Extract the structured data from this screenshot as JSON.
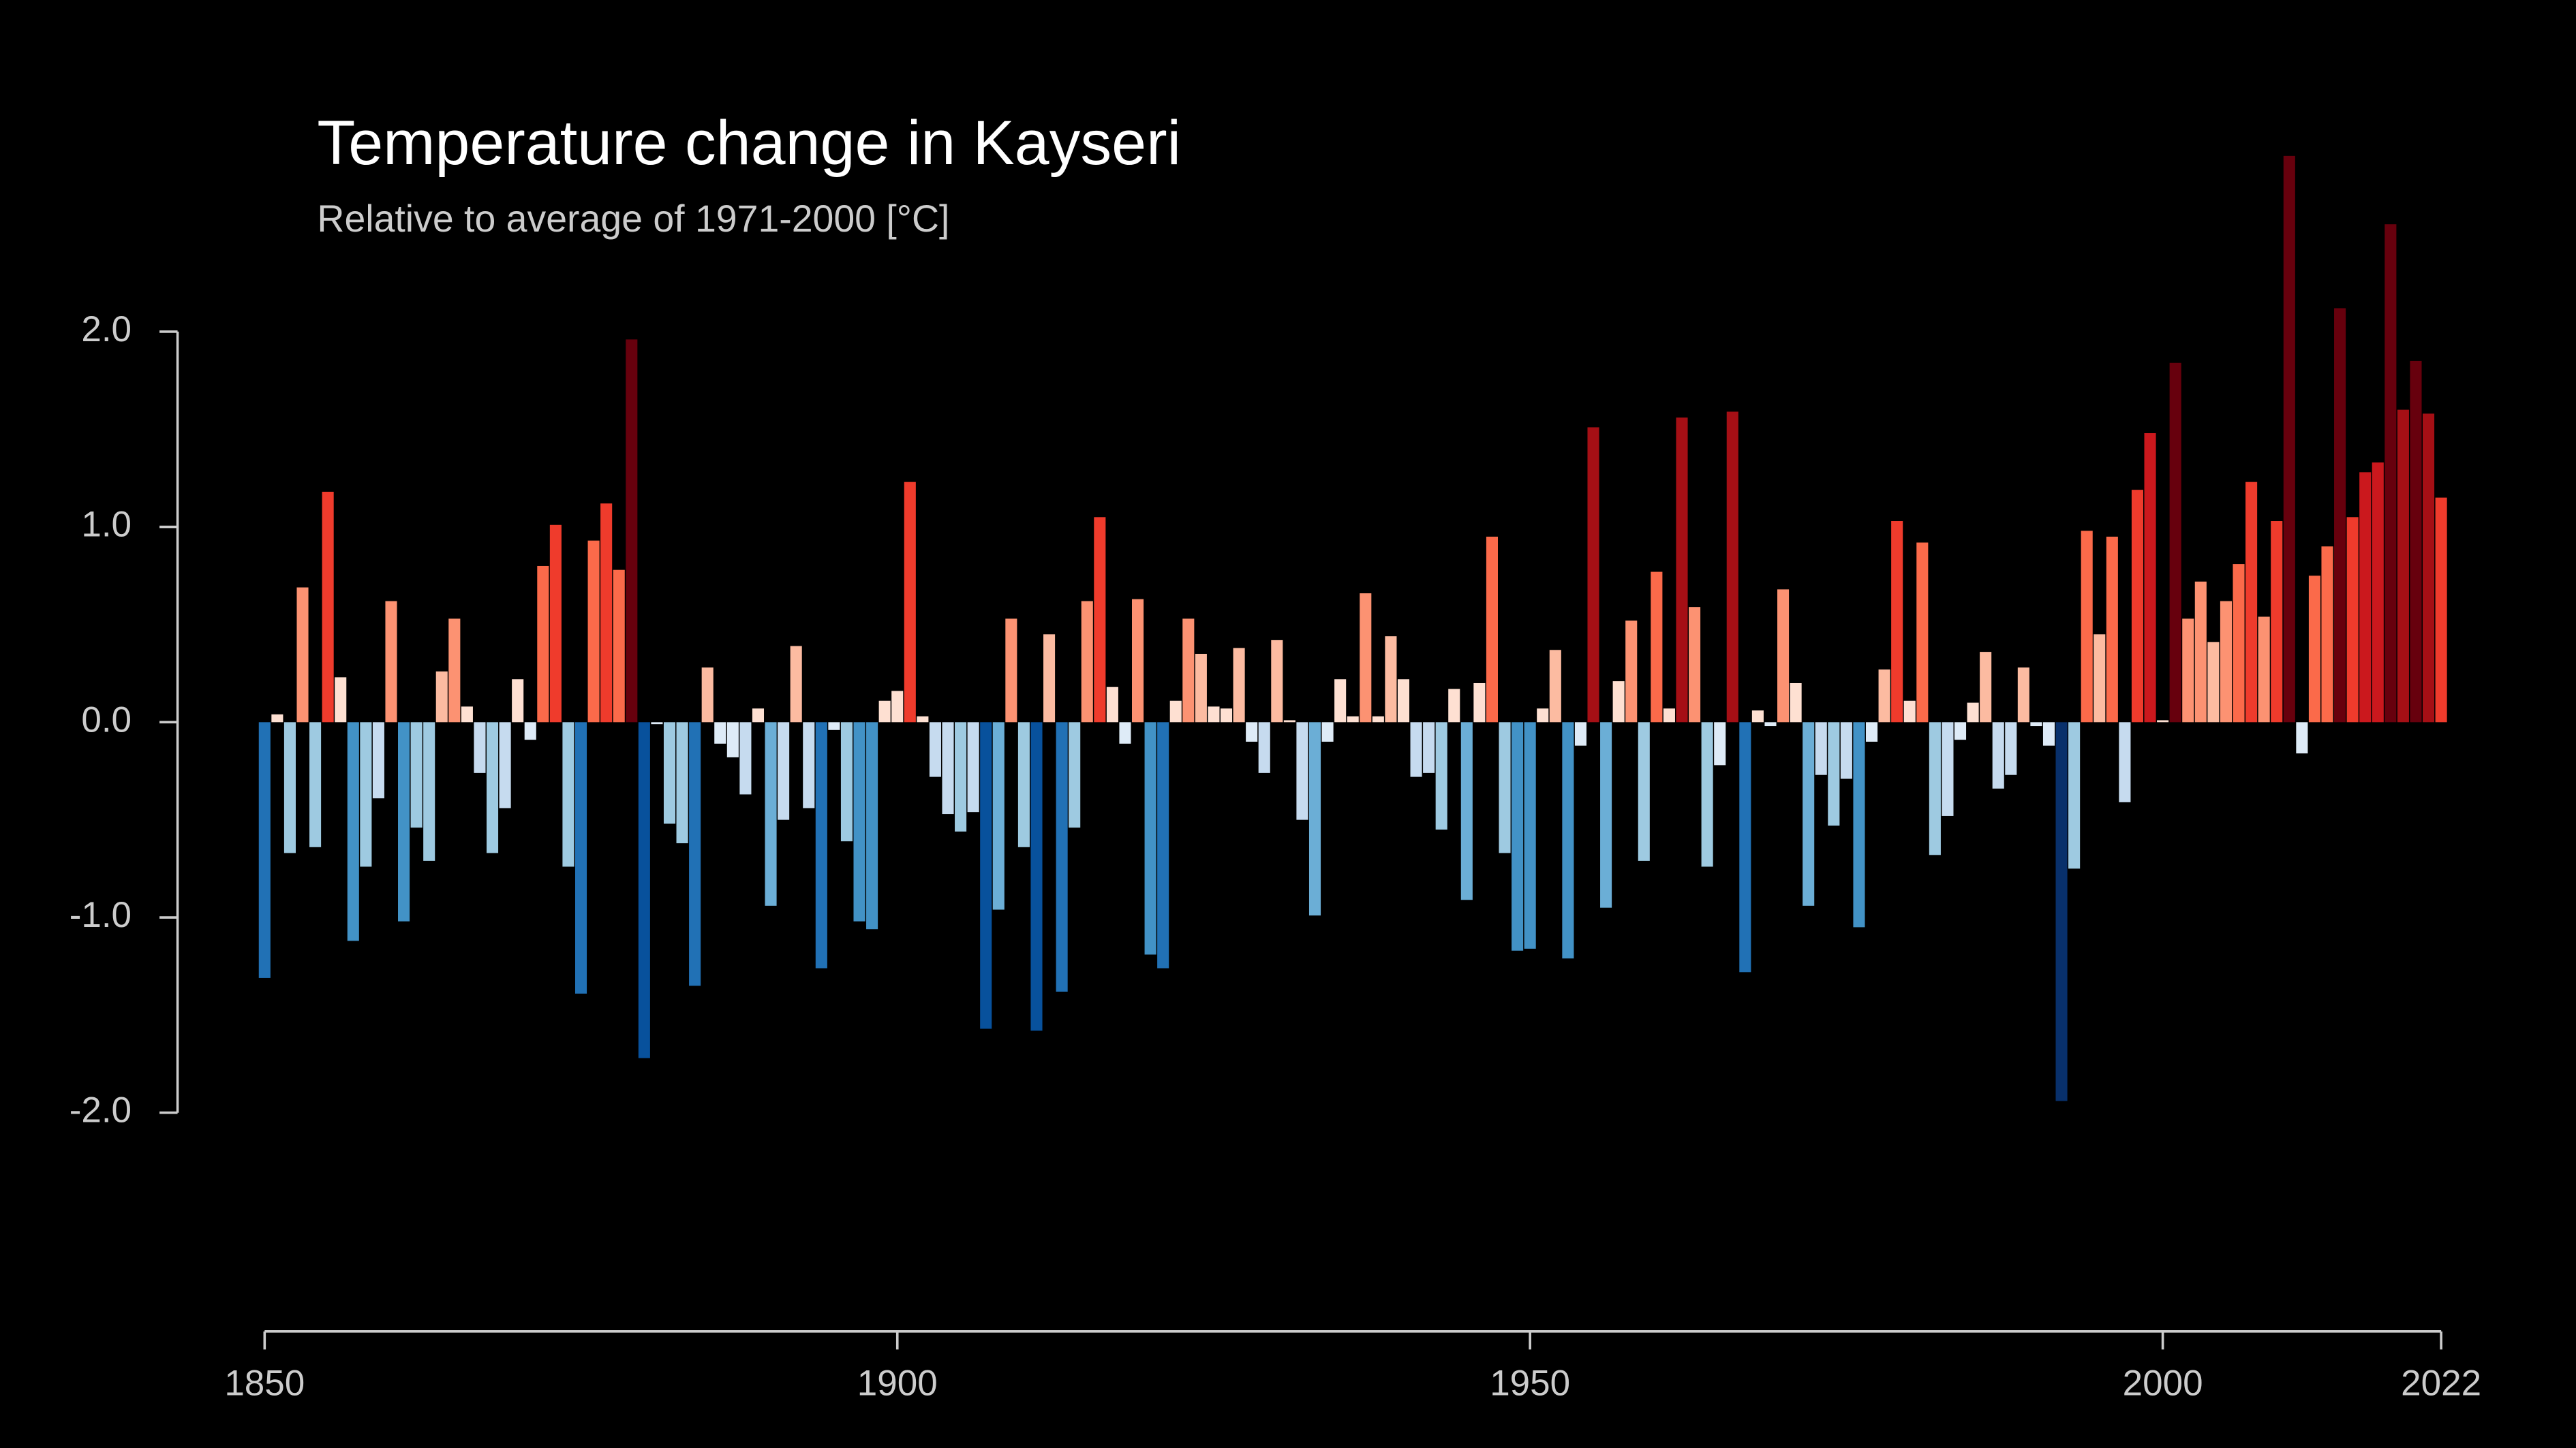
{
  "chart_data": {
    "type": "bar",
    "title": "Temperature change in Kayseri",
    "subtitle": "Relative to average of 1971-2000  [°C]",
    "x": [
      1850,
      1851,
      1852,
      1853,
      1854,
      1855,
      1856,
      1857,
      1858,
      1859,
      1860,
      1861,
      1862,
      1863,
      1864,
      1865,
      1866,
      1867,
      1868,
      1869,
      1870,
      1871,
      1872,
      1873,
      1874,
      1875,
      1876,
      1877,
      1878,
      1879,
      1880,
      1881,
      1882,
      1883,
      1884,
      1885,
      1886,
      1887,
      1888,
      1889,
      1890,
      1891,
      1892,
      1893,
      1894,
      1895,
      1896,
      1897,
      1898,
      1899,
      1900,
      1901,
      1902,
      1903,
      1904,
      1905,
      1906,
      1907,
      1908,
      1909,
      1910,
      1911,
      1912,
      1913,
      1914,
      1915,
      1916,
      1917,
      1918,
      1919,
      1920,
      1921,
      1922,
      1923,
      1924,
      1925,
      1926,
      1927,
      1928,
      1929,
      1930,
      1931,
      1932,
      1933,
      1934,
      1935,
      1936,
      1937,
      1938,
      1939,
      1940,
      1941,
      1942,
      1943,
      1944,
      1945,
      1946,
      1947,
      1948,
      1949,
      1950,
      1951,
      1952,
      1953,
      1954,
      1955,
      1956,
      1957,
      1958,
      1959,
      1960,
      1961,
      1962,
      1963,
      1964,
      1965,
      1966,
      1967,
      1968,
      1969,
      1970,
      1971,
      1972,
      1973,
      1974,
      1975,
      1976,
      1977,
      1978,
      1979,
      1980,
      1981,
      1982,
      1983,
      1984,
      1985,
      1986,
      1987,
      1988,
      1989,
      1990,
      1991,
      1992,
      1993,
      1994,
      1995,
      1996,
      1997,
      1998,
      1999,
      2000,
      2001,
      2002,
      2003,
      2004,
      2005,
      2006,
      2007,
      2008,
      2009,
      2010,
      2011,
      2012,
      2013,
      2014,
      2015,
      2016,
      2017,
      2018,
      2019,
      2020,
      2021,
      2022
    ],
    "values": [
      -1.31,
      0.04,
      -0.67,
      0.69,
      -0.64,
      1.18,
      0.23,
      -1.12,
      -0.74,
      -0.39,
      0.62,
      -1.02,
      -0.54,
      -0.71,
      0.26,
      0.53,
      0.08,
      -0.26,
      -0.67,
      -0.44,
      0.22,
      -0.09,
      0.8,
      1.01,
      -0.74,
      -1.39,
      0.93,
      1.12,
      0.78,
      1.96,
      -1.72,
      -0.01,
      -0.52,
      -0.62,
      -1.35,
      0.28,
      -0.11,
      -0.18,
      -0.37,
      0.07,
      -0.94,
      -0.5,
      0.39,
      -0.44,
      -1.26,
      -0.04,
      -0.61,
      -1.02,
      -1.06,
      0.11,
      0.16,
      1.23,
      0.03,
      -0.28,
      -0.47,
      -0.56,
      -0.46,
      -1.57,
      -0.96,
      0.53,
      -0.64,
      -1.58,
      0.45,
      -1.38,
      -0.54,
      0.62,
      1.05,
      0.18,
      -0.11,
      0.63,
      -1.19,
      -1.26,
      0.11,
      0.53,
      0.35,
      0.08,
      0.07,
      0.38,
      -0.1,
      -0.26,
      0.42,
      0.01,
      -0.5,
      -0.99,
      -0.1,
      0.22,
      0.03,
      0.66,
      0.03,
      0.44,
      0.22,
      -0.28,
      -0.26,
      -0.55,
      0.17,
      -0.91,
      0.2,
      0.95,
      -0.67,
      -1.17,
      -1.16,
      0.07,
      0.37,
      -1.21,
      -0.12,
      1.51,
      -0.95,
      0.21,
      0.52,
      -0.71,
      0.77,
      0.07,
      1.56,
      0.59,
      -0.74,
      -0.22,
      1.59,
      -1.28,
      0.06,
      -0.02,
      0.68,
      0.2,
      -0.94,
      -0.27,
      -0.53,
      -0.29,
      -1.05,
      -0.1,
      0.27,
      1.03,
      0.11,
      0.92,
      -0.68,
      -0.48,
      -0.09,
      0.1,
      0.36,
      -0.34,
      -0.27,
      0.28,
      -0.02,
      -0.12,
      -1.94,
      -0.75,
      0.98,
      0.45,
      0.95,
      -0.41,
      1.19,
      1.48,
      0.01,
      1.84,
      0.53,
      0.72,
      0.41,
      0.62,
      0.81,
      1.23,
      0.54,
      1.03,
      2.9,
      -0.16,
      0.75,
      0.9,
      2.12,
      1.05,
      1.28,
      1.33,
      2.55,
      1.6,
      1.85,
      1.58,
      1.15
    ],
    "colors": [
      "#08306b",
      "#08519c",
      "#2171b5",
      "#4292c6",
      "#6baed6",
      "#9ecae1",
      "#c6dbef",
      "#deebf7",
      "#fee0d2",
      "#fcbba1",
      "#fc9272",
      "#fb6a4a",
      "#ef3b2c",
      "#cb181d",
      "#a50f15",
      "#67000d"
    ],
    "xlim": [
      1850,
      2022
    ],
    "xticks": [
      1850,
      1900,
      1950,
      2000,
      2022
    ],
    "ylim": [
      -3.12,
      2.95
    ],
    "yticks": [
      {
        "value": -2,
        "label": "-2.0"
      },
      {
        "value": -1,
        "label": "-1.0"
      },
      {
        "value": 0,
        "label": "0.0"
      },
      {
        "value": 1,
        "label": "1.0"
      },
      {
        "value": 2,
        "label": "2.0"
      }
    ]
  }
}
